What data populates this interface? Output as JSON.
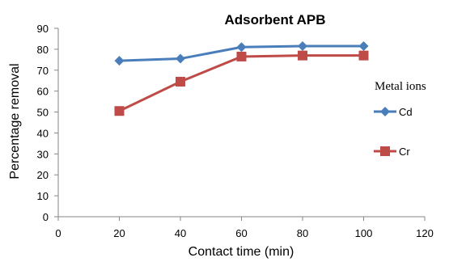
{
  "chart_data": {
    "type": "line",
    "title": "Adsorbent APB",
    "xlabel": "Contact time (min)",
    "ylabel": "Percentage removal",
    "xlim": [
      0,
      120
    ],
    "ylim": [
      0,
      90
    ],
    "x_ticks": [
      0,
      20,
      40,
      60,
      80,
      100,
      120
    ],
    "y_ticks": [
      0,
      10,
      20,
      30,
      40,
      50,
      60,
      70,
      80,
      90
    ],
    "grid": false,
    "legend_title": "Metal ions",
    "legend_position": "right",
    "series": [
      {
        "name": "Cd",
        "color": "#4a7ebb",
        "marker": "diamond",
        "x": [
          20,
          40,
          60,
          80,
          100
        ],
        "values": [
          74.5,
          75.5,
          81,
          81.5,
          81.5
        ]
      },
      {
        "name": "Cr",
        "color": "#be4b48",
        "marker": "square",
        "x": [
          20,
          40,
          60,
          80,
          100
        ],
        "values": [
          50.5,
          64.5,
          76.5,
          77,
          77
        ]
      }
    ]
  }
}
